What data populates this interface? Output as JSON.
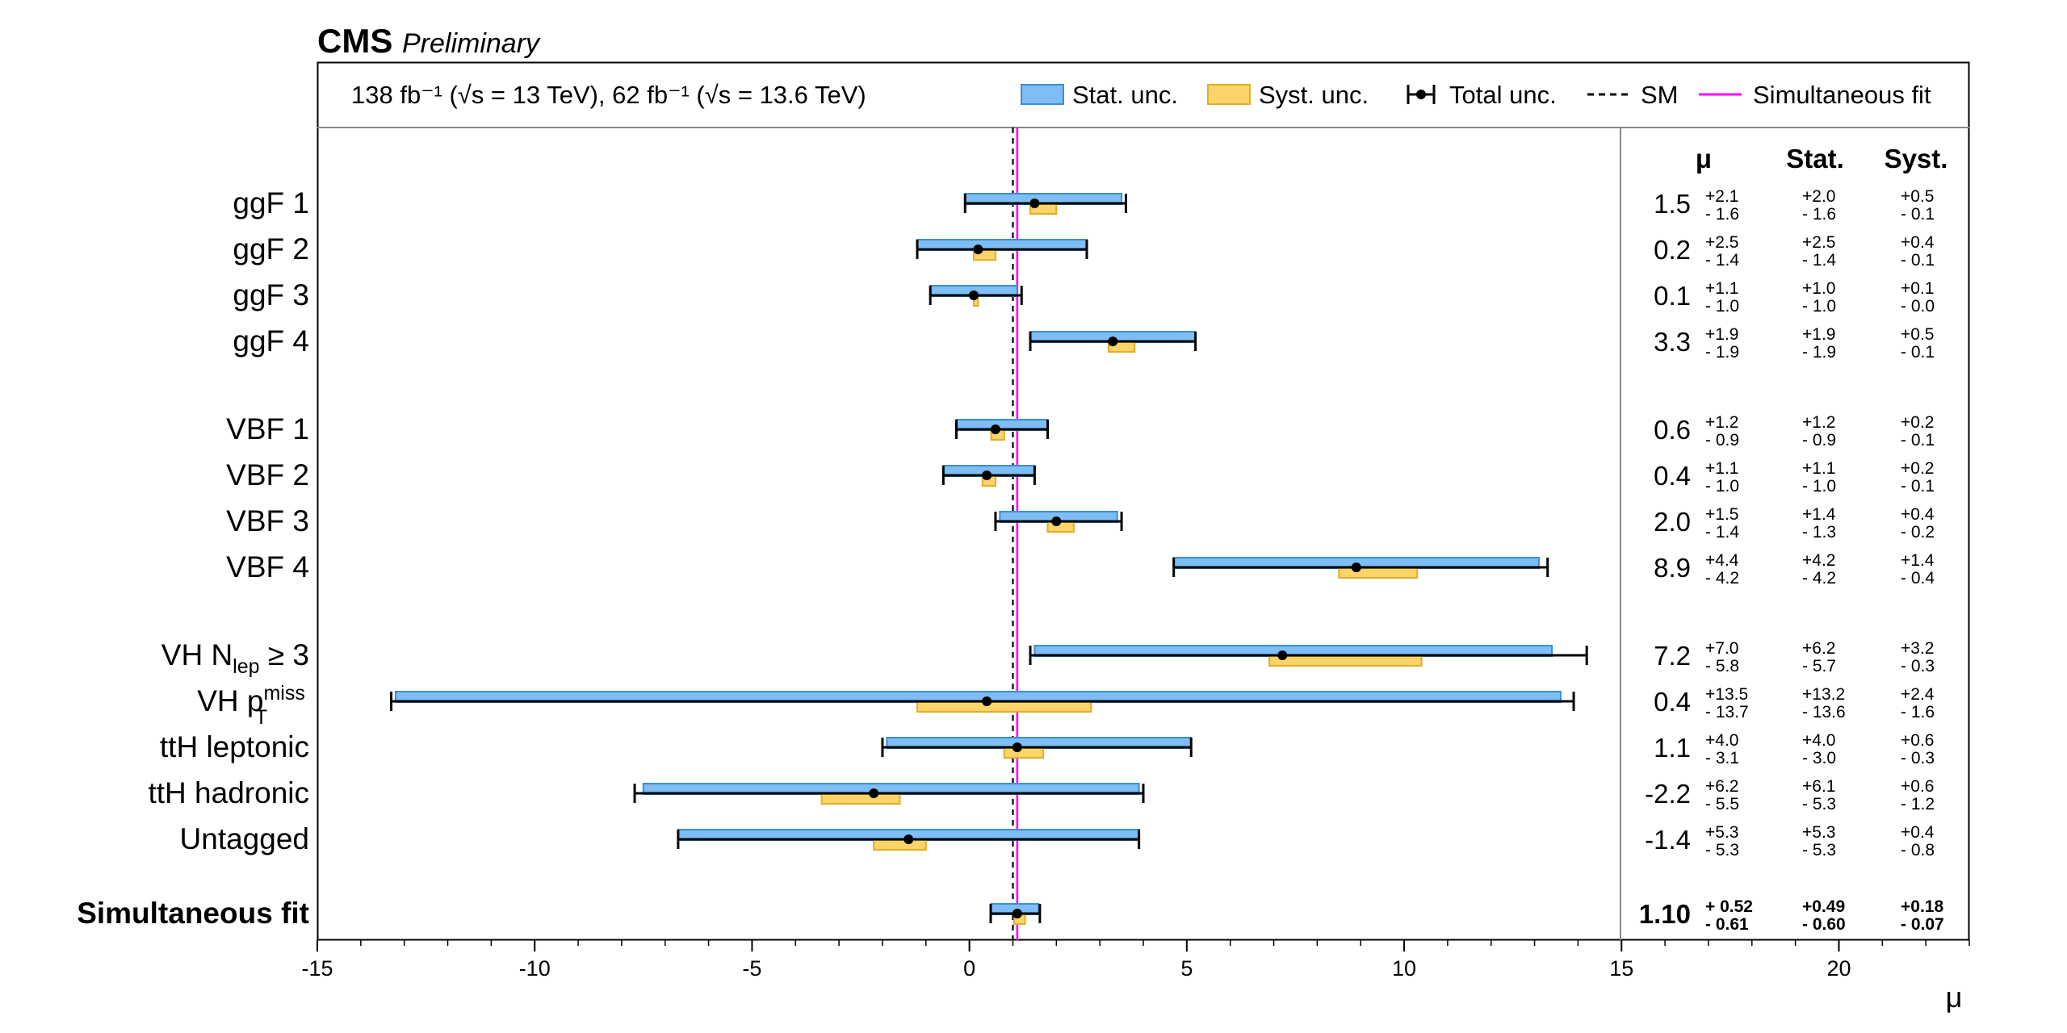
{
  "header": {
    "experiment": "CMS",
    "status": "Preliminary",
    "lumi_text": "138 fb⁻¹ (√s = 13 TeV), 62 fb⁻¹ (√s = 13.6 TeV)"
  },
  "colors": {
    "stat_fill": "#7ebdf5",
    "stat_edge": "#3a8ed6",
    "syst_fill": "#fbd46a",
    "syst_edge": "#e0ae2a",
    "total": "#000000",
    "sm_line": "#000000",
    "fit_line": "#ff00ff"
  },
  "table_headers": {
    "mu": "μ",
    "stat": "Stat.",
    "syst": "Syst."
  },
  "chart_data": {
    "type": "forest",
    "xlabel": "μ",
    "xlim": [
      -15,
      23
    ],
    "xticks": [
      -15,
      -10,
      -5,
      0,
      5,
      10,
      15,
      20
    ],
    "xtick_labels": [
      "-15",
      "-10",
      "-5",
      "0",
      "5",
      "10",
      "15",
      "20"
    ],
    "sm_value": 1.0,
    "simultaneous_fit_value": 1.1,
    "legend": [
      {
        "key": "stat",
        "label": "Stat. unc."
      },
      {
        "key": "syst",
        "label": "Syst. unc."
      },
      {
        "key": "total",
        "label": "Total unc."
      },
      {
        "key": "sm",
        "label": "SM"
      },
      {
        "key": "fit",
        "label": "Simultaneous fit"
      }
    ],
    "categories": [
      {
        "label": "ggF 1",
        "mu": 1.5,
        "mu_text": "1.5",
        "tot": [
          "+2.1",
          "- 1.6"
        ],
        "stat": [
          "+2.0",
          "- 1.6"
        ],
        "syst": [
          "+0.5",
          "- 0.1"
        ],
        "tot_up": 2.1,
        "tot_dn": 1.6,
        "stat_up": 2.0,
        "stat_dn": 1.6,
        "syst_up": 0.5,
        "syst_dn": 0.1
      },
      {
        "label": "ggF 2",
        "mu": 0.2,
        "mu_text": "0.2",
        "tot": [
          "+2.5",
          "- 1.4"
        ],
        "stat": [
          "+2.5",
          "- 1.4"
        ],
        "syst": [
          "+0.4",
          "- 0.1"
        ],
        "tot_up": 2.5,
        "tot_dn": 1.4,
        "stat_up": 2.5,
        "stat_dn": 1.4,
        "syst_up": 0.4,
        "syst_dn": 0.1
      },
      {
        "label": "ggF 3",
        "mu": 0.1,
        "mu_text": "0.1",
        "tot": [
          "+1.1",
          "- 1.0"
        ],
        "stat": [
          "+1.0",
          "- 1.0"
        ],
        "syst": [
          "+0.1",
          "- 0.0"
        ],
        "tot_up": 1.1,
        "tot_dn": 1.0,
        "stat_up": 1.0,
        "stat_dn": 1.0,
        "syst_up": 0.1,
        "syst_dn": 0.0
      },
      {
        "label": "ggF 4",
        "mu": 3.3,
        "mu_text": "3.3",
        "tot": [
          "+1.9",
          "- 1.9"
        ],
        "stat": [
          "+1.9",
          "- 1.9"
        ],
        "syst": [
          "+0.5",
          "- 0.1"
        ],
        "tot_up": 1.9,
        "tot_dn": 1.9,
        "stat_up": 1.9,
        "stat_dn": 1.9,
        "syst_up": 0.5,
        "syst_dn": 0.1
      },
      {
        "label": "VBF 1",
        "mu": 0.6,
        "mu_text": "0.6",
        "tot": [
          "+1.2",
          "- 0.9"
        ],
        "stat": [
          "+1.2",
          "- 0.9"
        ],
        "syst": [
          "+0.2",
          "- 0.1"
        ],
        "tot_up": 1.2,
        "tot_dn": 0.9,
        "stat_up": 1.2,
        "stat_dn": 0.9,
        "syst_up": 0.2,
        "syst_dn": 0.1
      },
      {
        "label": "VBF 2",
        "mu": 0.4,
        "mu_text": "0.4",
        "tot": [
          "+1.1",
          "- 1.0"
        ],
        "stat": [
          "+1.1",
          "- 1.0"
        ],
        "syst": [
          "+0.2",
          "- 0.1"
        ],
        "tot_up": 1.1,
        "tot_dn": 1.0,
        "stat_up": 1.1,
        "stat_dn": 1.0,
        "syst_up": 0.2,
        "syst_dn": 0.1
      },
      {
        "label": "VBF 3",
        "mu": 2.0,
        "mu_text": "2.0",
        "tot": [
          "+1.5",
          "- 1.4"
        ],
        "stat": [
          "+1.4",
          "- 1.3"
        ],
        "syst": [
          "+0.4",
          "- 0.2"
        ],
        "tot_up": 1.5,
        "tot_dn": 1.4,
        "stat_up": 1.4,
        "stat_dn": 1.3,
        "syst_up": 0.4,
        "syst_dn": 0.2
      },
      {
        "label": "VBF 4",
        "mu": 8.9,
        "mu_text": "8.9",
        "tot": [
          "+4.4",
          "- 4.2"
        ],
        "stat": [
          "+4.2",
          "- 4.2"
        ],
        "syst": [
          "+1.4",
          "- 0.4"
        ],
        "tot_up": 4.4,
        "tot_dn": 4.2,
        "stat_up": 4.2,
        "stat_dn": 4.2,
        "syst_up": 1.4,
        "syst_dn": 0.4
      },
      {
        "label": "VH N",
        "label_sub": "lep",
        "label_rest": " ≥ 3",
        "mu": 7.2,
        "mu_text": "7.2",
        "tot": [
          "+7.0",
          "- 5.8"
        ],
        "stat": [
          "+6.2",
          "- 5.7"
        ],
        "syst": [
          "+3.2",
          "- 0.3"
        ],
        "tot_up": 7.0,
        "tot_dn": 5.8,
        "stat_up": 6.2,
        "stat_dn": 5.7,
        "syst_up": 3.2,
        "syst_dn": 0.3
      },
      {
        "label": "VH p",
        "label_sup": "miss",
        "label_sub": "T",
        "mu": 0.4,
        "mu_text": "0.4",
        "tot": [
          "+13.5",
          "- 13.7"
        ],
        "stat": [
          "+13.2",
          "- 13.6"
        ],
        "syst": [
          "+2.4",
          "- 1.6"
        ],
        "tot_up": 13.5,
        "tot_dn": 13.7,
        "stat_up": 13.2,
        "stat_dn": 13.6,
        "syst_up": 2.4,
        "syst_dn": 1.6
      },
      {
        "label": "ttH leptonic",
        "mu": 1.1,
        "mu_text": "1.1",
        "tot": [
          "+4.0",
          "- 3.1"
        ],
        "stat": [
          "+4.0",
          "- 3.0"
        ],
        "syst": [
          "+0.6",
          "- 0.3"
        ],
        "tot_up": 4.0,
        "tot_dn": 3.1,
        "stat_up": 4.0,
        "stat_dn": 3.0,
        "syst_up": 0.6,
        "syst_dn": 0.3
      },
      {
        "label": "ttH hadronic",
        "mu": -2.2,
        "mu_text": "-2.2",
        "tot": [
          "+6.2",
          "- 5.5"
        ],
        "stat": [
          "+6.1",
          "- 5.3"
        ],
        "syst": [
          "+0.6",
          "- 1.2"
        ],
        "tot_up": 6.2,
        "tot_dn": 5.5,
        "stat_up": 6.1,
        "stat_dn": 5.3,
        "syst_up": 0.6,
        "syst_dn": 1.2
      },
      {
        "label": "Untagged",
        "mu": -1.4,
        "mu_text": "-1.4",
        "tot": [
          "+5.3",
          "- 5.3"
        ],
        "stat": [
          "+5.3",
          "- 5.3"
        ],
        "syst": [
          "+0.4",
          "- 0.8"
        ],
        "tot_up": 5.3,
        "tot_dn": 5.3,
        "stat_up": 5.3,
        "stat_dn": 5.3,
        "syst_up": 0.4,
        "syst_dn": 0.8
      },
      {
        "label": "Simultaneous fit",
        "bold": true,
        "mu": 1.1,
        "mu_text": "1.10",
        "tot": [
          "+ 0.52",
          "- 0.61"
        ],
        "stat": [
          "+0.49",
          "- 0.60"
        ],
        "syst": [
          "+0.18",
          "- 0.07"
        ],
        "tot_up": 0.52,
        "tot_dn": 0.61,
        "stat_up": 0.49,
        "stat_dn": 0.6,
        "syst_up": 0.18,
        "syst_dn": 0.07
      }
    ]
  }
}
